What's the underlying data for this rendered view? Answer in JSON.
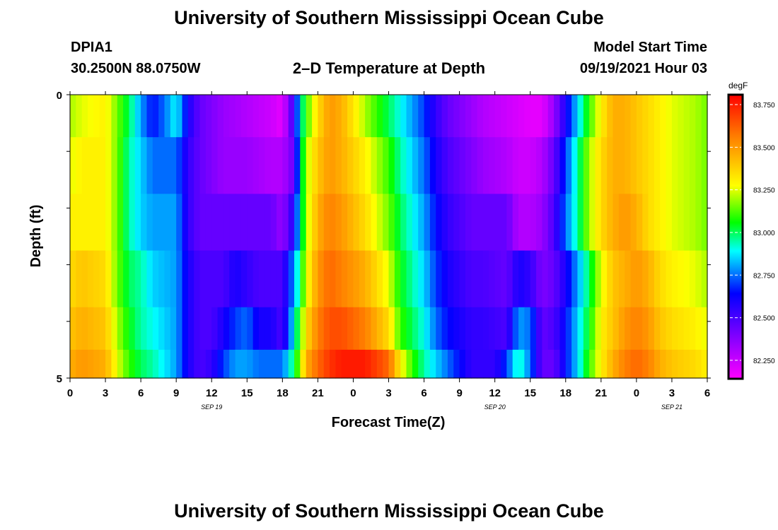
{
  "page": {
    "top_title": "University of Southern Mississippi Ocean Cube",
    "bottom_title": "University of Southern Mississippi Ocean Cube",
    "station_id": "DPIA1",
    "station_coords": "30.2500N  88.0750W",
    "plot_title": "2–D Temperature at Depth",
    "model_label": "Model Start Time",
    "model_time": "09/19/2021 Hour 03"
  },
  "chart_data": {
    "type": "heatmap",
    "title": "2–D Temperature at Depth",
    "xlabel": "Forecast Time(Z)",
    "ylabel": "Depth (ft)",
    "units": "degF",
    "x_range": [
      0,
      54
    ],
    "x_tick_labels": [
      "0",
      "3",
      "6",
      "9",
      "12",
      "15",
      "18",
      "21",
      "0",
      "3",
      "6",
      "9",
      "12",
      "15",
      "18",
      "21",
      "0",
      "3",
      "6"
    ],
    "date_labels": [
      {
        "text": "SEP 19",
        "hour": 12
      },
      {
        "text": "SEP 20",
        "hour": 36
      },
      {
        "text": "SEP 21",
        "hour": 51
      }
    ],
    "y_range": [
      0,
      5
    ],
    "y_tick_labels": [
      "0",
      "5"
    ],
    "depth_levels": [
      0.25,
      1.25,
      2.25,
      3.25,
      4.25,
      4.75
    ],
    "colorbar": {
      "min": 82.15,
      "max": 83.8,
      "tick_values": [
        82.25,
        82.5,
        82.75,
        83.0,
        83.25,
        83.5,
        83.75
      ],
      "tick_labels": [
        "82.250",
        "82.500",
        "82.750",
        "83.000",
        "83.250",
        "83.500",
        "83.750"
      ]
    },
    "series": [
      {
        "name": "0.25 ft",
        "times": [
          0,
          1,
          3,
          4,
          5,
          6,
          7,
          8,
          9,
          10,
          11,
          13,
          15,
          17,
          18,
          19,
          19.5,
          20,
          21,
          22,
          23,
          25,
          27,
          28,
          30,
          31,
          32,
          33,
          34,
          35,
          37,
          39,
          40,
          41,
          42,
          43,
          44,
          45,
          46,
          47,
          48,
          49,
          50,
          51,
          53,
          54
        ],
        "values": [
          83.2,
          83.25,
          83.3,
          83.15,
          83.0,
          82.8,
          82.65,
          82.75,
          82.9,
          82.6,
          82.45,
          82.35,
          82.3,
          82.25,
          82.2,
          82.55,
          82.9,
          83.1,
          83.35,
          83.5,
          83.45,
          83.2,
          83.0,
          82.9,
          82.7,
          82.55,
          82.45,
          82.4,
          82.35,
          82.3,
          82.25,
          82.2,
          82.2,
          82.35,
          82.6,
          82.85,
          83.1,
          83.3,
          83.45,
          83.45,
          83.4,
          83.35,
          83.3,
          83.25,
          83.2,
          83.15
        ]
      },
      {
        "name": "1.25 ft",
        "times": [
          0,
          1,
          3,
          4,
          5,
          6,
          7,
          9,
          10,
          11,
          13,
          15,
          17,
          18,
          19,
          19.5,
          20,
          21,
          22,
          23,
          25,
          27,
          28,
          30,
          31,
          32,
          33,
          34,
          35,
          37,
          38,
          39,
          40,
          41,
          42,
          43,
          44,
          45,
          46,
          47,
          48,
          49,
          50,
          51,
          53,
          54
        ],
        "values": [
          83.25,
          83.3,
          83.3,
          83.15,
          82.95,
          82.85,
          82.75,
          82.75,
          82.55,
          82.45,
          82.35,
          82.35,
          82.3,
          82.3,
          82.45,
          82.9,
          83.2,
          83.4,
          83.5,
          83.45,
          83.3,
          83.1,
          82.95,
          82.75,
          82.6,
          82.5,
          82.45,
          82.4,
          82.35,
          82.3,
          82.25,
          82.25,
          82.3,
          82.45,
          82.7,
          82.95,
          83.2,
          83.35,
          83.45,
          83.45,
          83.4,
          83.35,
          83.3,
          83.25,
          83.2,
          83.15
        ]
      },
      {
        "name": "2.25 ft",
        "times": [
          0,
          1,
          3,
          4,
          5,
          6,
          7,
          9,
          10,
          11,
          13,
          15,
          16,
          17,
          18,
          19,
          19.5,
          20,
          21,
          22,
          23,
          25,
          27,
          28,
          30,
          31,
          32,
          33,
          34,
          35,
          36,
          37,
          38,
          39,
          40,
          41,
          42,
          43,
          44,
          45,
          46,
          47,
          48,
          49,
          50,
          51,
          53,
          54
        ],
        "values": [
          83.3,
          83.3,
          83.3,
          83.15,
          82.95,
          82.85,
          82.8,
          82.8,
          82.55,
          82.45,
          82.45,
          82.45,
          82.45,
          82.45,
          82.35,
          82.6,
          82.9,
          83.2,
          83.45,
          83.55,
          83.5,
          83.35,
          83.15,
          83.0,
          82.8,
          82.65,
          82.55,
          82.5,
          82.45,
          82.45,
          82.45,
          82.45,
          82.3,
          82.3,
          82.35,
          82.5,
          82.75,
          82.95,
          83.2,
          83.35,
          83.45,
          83.5,
          83.45,
          83.35,
          83.3,
          83.25,
          83.2,
          83.15
        ]
      },
      {
        "name": "3.25 ft",
        "times": [
          0,
          1,
          3,
          4,
          5,
          6,
          7,
          9,
          10,
          11,
          13,
          14,
          15,
          16,
          18,
          19,
          19.5,
          20,
          21,
          22,
          23,
          25,
          27,
          28,
          30,
          31,
          32,
          33,
          34,
          35,
          37,
          38,
          39,
          40,
          41,
          42,
          43,
          44,
          45,
          46,
          47,
          48,
          49,
          50,
          51,
          53,
          54
        ],
        "values": [
          83.35,
          83.4,
          83.35,
          83.15,
          83.0,
          82.95,
          82.85,
          82.8,
          82.6,
          82.5,
          82.5,
          82.6,
          82.55,
          82.5,
          82.5,
          82.8,
          83.0,
          83.25,
          83.5,
          83.6,
          83.55,
          83.45,
          83.25,
          83.05,
          82.85,
          82.7,
          82.6,
          82.55,
          82.5,
          82.5,
          82.45,
          82.6,
          82.55,
          82.4,
          82.45,
          82.6,
          82.8,
          83.0,
          83.25,
          83.4,
          83.45,
          83.5,
          83.45,
          83.35,
          83.3,
          83.25,
          83.2
        ]
      },
      {
        "name": "4.25 ft",
        "times": [
          0,
          1,
          3,
          4,
          5,
          6,
          7,
          9,
          10,
          11,
          12,
          13,
          14,
          15,
          16,
          17,
          18,
          19,
          19.5,
          20,
          21,
          22,
          23,
          25,
          27,
          28,
          30,
          31,
          32,
          33,
          34,
          35,
          37,
          38,
          39,
          40,
          41,
          42,
          43,
          44,
          45,
          46,
          47,
          48,
          49,
          50,
          51,
          53,
          54
        ],
        "values": [
          83.4,
          83.45,
          83.4,
          83.2,
          83.05,
          82.95,
          82.9,
          82.8,
          82.6,
          82.5,
          82.5,
          82.6,
          82.7,
          82.75,
          82.6,
          82.6,
          82.5,
          82.9,
          83.1,
          83.35,
          83.55,
          83.65,
          83.65,
          83.55,
          83.35,
          83.1,
          82.9,
          82.75,
          82.65,
          82.6,
          82.55,
          82.55,
          82.5,
          82.8,
          82.75,
          82.45,
          82.5,
          82.65,
          82.85,
          83.05,
          83.3,
          83.4,
          83.5,
          83.55,
          83.5,
          83.4,
          83.35,
          83.3,
          83.25
        ]
      },
      {
        "name": "4.75 ft",
        "times": [
          0,
          1,
          3,
          4,
          5,
          6,
          7,
          9,
          10,
          11,
          12,
          13,
          14,
          15,
          16,
          17,
          18,
          19,
          19.5,
          20,
          21,
          22,
          23,
          25,
          27,
          28,
          29,
          30,
          31,
          32,
          33,
          34,
          35,
          36,
          37,
          38,
          39,
          40,
          41,
          42,
          43,
          44,
          45,
          46,
          47,
          48,
          49,
          50,
          51,
          53,
          54
        ],
        "values": [
          83.45,
          83.5,
          83.45,
          83.25,
          83.1,
          83.0,
          82.95,
          82.8,
          82.6,
          82.5,
          82.55,
          82.7,
          82.8,
          82.8,
          82.75,
          82.75,
          82.75,
          83.0,
          83.2,
          83.45,
          83.6,
          83.7,
          83.75,
          83.75,
          83.6,
          83.3,
          83.1,
          82.95,
          82.85,
          82.75,
          82.65,
          82.55,
          82.55,
          82.55,
          82.7,
          82.95,
          82.75,
          82.45,
          82.45,
          82.65,
          82.85,
          83.1,
          83.3,
          83.45,
          83.55,
          83.6,
          83.55,
          83.45,
          83.4,
          83.35,
          83.3
        ]
      }
    ]
  }
}
